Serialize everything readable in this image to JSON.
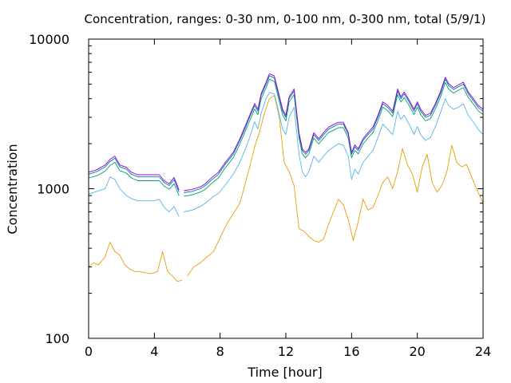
{
  "chart_data": {
    "type": "line",
    "title": "Concentration, ranges: 0-30 nm, 0-100 nm, 0-300 nm, total (5/9/1)",
    "xlabel": "Time [hour]",
    "ylabel": "Concentration",
    "xlim": [
      0,
      24
    ],
    "ylim": [
      100,
      10000
    ],
    "yscale": "log",
    "grid": false,
    "legend": "none",
    "x_ticks": [
      "0",
      "4",
      "8",
      "12",
      "16",
      "20",
      "24"
    ],
    "y_ticks": [
      "100",
      "1000",
      "10000"
    ],
    "series": [
      {
        "color": "#0072b2",
        "stroke_width": 0.9,
        "x": [
          0,
          0.5,
          1,
          1.3,
          1.6,
          1.9,
          2.3,
          2.6,
          3,
          3.5,
          4,
          4.3,
          4.6,
          4.9,
          5.2,
          5.5,
          null,
          5.8,
          6.3,
          6.8,
          7.1,
          7.5,
          7.9,
          8.3,
          8.8,
          9.2,
          9.5,
          9.8,
          10.1,
          10.3,
          10.5,
          10.8,
          11,
          11.3,
          11.5,
          11.8,
          12,
          12.2,
          12.5,
          12.8,
          13,
          13.2,
          13.4,
          13.7,
          14,
          14.3,
          14.6,
          14.9,
          15.2,
          15.5,
          15.8,
          16,
          16.2,
          16.4,
          16.7,
          17,
          17.3,
          17.6,
          17.9,
          18.2,
          18.5,
          18.8,
          19,
          19.2,
          19.5,
          19.8,
          20,
          20.2,
          20.5,
          20.8,
          21.1,
          21.4,
          21.7,
          21.9,
          22.2,
          22.5,
          22.8,
          23.1,
          23.4,
          23.7,
          24
        ],
        "y": [
          1250,
          1300,
          1400,
          1520,
          1600,
          1400,
          1350,
          1250,
          1200,
          1200,
          1200,
          1200,
          1100,
          1050,
          1150,
          950,
          null,
          940,
          960,
          1000,
          1050,
          1150,
          1250,
          1450,
          1700,
          2100,
          2500,
          3000,
          3600,
          3300,
          4200,
          5000,
          5700,
          5500,
          4500,
          3300,
          3000,
          4000,
          4500,
          2300,
          1800,
          1700,
          1800,
          2300,
          2100,
          2300,
          2500,
          2600,
          2700,
          2700,
          2300,
          1700,
          1900,
          1800,
          2100,
          2300,
          2500,
          3000,
          3700,
          3500,
          3200,
          4500,
          4000,
          4300,
          3800,
          3300,
          3700,
          3300,
          3000,
          3100,
          3600,
          4300,
          5400,
          4900,
          4600,
          4800,
          5000,
          4300,
          3900,
          3500,
          3300
        ]
      },
      {
        "color": "#e69f00",
        "stroke_width": 0.9,
        "x": [
          0,
          0.3,
          0.6,
          1,
          1.3,
          1.6,
          1.9,
          2.2,
          2.5,
          2.8,
          3.1,
          3.4,
          3.8,
          4.2,
          4.5,
          4.8,
          5.1,
          5.4,
          5.7,
          null,
          6,
          6.4,
          6.8,
          7.2,
          7.6,
          8,
          8.4,
          8.8,
          9.2,
          9.5,
          9.8,
          10.1,
          10.4,
          10.7,
          11,
          11.3,
          11.6,
          11.9,
          12.2,
          12.5,
          12.8,
          13.1,
          13.4,
          13.7,
          14,
          14.3,
          14.6,
          14.9,
          15.2,
          15.5,
          15.8,
          16.1,
          16.4,
          16.7,
          17,
          17.3,
          17.6,
          17.9,
          18.2,
          18.5,
          18.8,
          19.1,
          19.4,
          19.7,
          20,
          20.3,
          20.6,
          20.9,
          21.2,
          21.5,
          21.8,
          22.1,
          22.4,
          22.7,
          23,
          23.3,
          23.6,
          24
        ],
        "y": [
          300,
          320,
          310,
          350,
          440,
          380,
          360,
          310,
          290,
          280,
          280,
          275,
          270,
          280,
          380,
          280,
          260,
          240,
          245,
          null,
          260,
          300,
          320,
          350,
          380,
          470,
          580,
          680,
          800,
          1050,
          1400,
          1900,
          2400,
          3200,
          4000,
          4200,
          3000,
          1500,
          1300,
          1050,
          540,
          520,
          480,
          450,
          440,
          460,
          580,
          700,
          850,
          780,
          620,
          450,
          600,
          850,
          720,
          750,
          900,
          1100,
          1200,
          1000,
          1300,
          1850,
          1450,
          1250,
          950,
          1400,
          1700,
          1100,
          950,
          1050,
          1300,
          1950,
          1500,
          1400,
          1450,
          1200,
          1000,
          800
        ]
      },
      {
        "color": "#56b4e9",
        "stroke_width": 0.9,
        "x": [
          0,
          0.5,
          1,
          1.3,
          1.6,
          1.9,
          2.3,
          2.6,
          3,
          3.5,
          4,
          4.3,
          4.6,
          4.9,
          5.2,
          5.5,
          null,
          5.8,
          6.3,
          6.8,
          7.1,
          7.5,
          7.9,
          8.3,
          8.8,
          9.2,
          9.5,
          9.8,
          10.1,
          10.3,
          10.5,
          10.8,
          11,
          11.3,
          11.5,
          11.8,
          12,
          12.2,
          12.5,
          12.8,
          13,
          13.2,
          13.4,
          13.7,
          14,
          14.3,
          14.6,
          14.9,
          15.2,
          15.5,
          15.8,
          16,
          16.2,
          16.4,
          16.7,
          17,
          17.3,
          17.6,
          17.9,
          18.2,
          18.5,
          18.8,
          19,
          19.2,
          19.5,
          19.8,
          20,
          20.2,
          20.5,
          20.8,
          21.1,
          21.4,
          21.7,
          21.9,
          22.2,
          22.5,
          22.8,
          23.1,
          23.4,
          23.7,
          24
        ],
        "y": [
          920,
          960,
          1000,
          1200,
          1150,
          1000,
          900,
          860,
          830,
          830,
          830,
          850,
          750,
          700,
          760,
          650,
          null,
          700,
          720,
          760,
          800,
          870,
          930,
          1050,
          1250,
          1500,
          1800,
          2200,
          2800,
          2500,
          3200,
          4000,
          4400,
          4300,
          3500,
          2500,
          2300,
          3000,
          3500,
          1700,
          1300,
          1200,
          1300,
          1650,
          1500,
          1650,
          1800,
          1900,
          2000,
          1950,
          1650,
          1150,
          1350,
          1250,
          1500,
          1650,
          1800,
          2200,
          2700,
          2500,
          2300,
          3300,
          2900,
          3100,
          2700,
          2300,
          2600,
          2300,
          2100,
          2200,
          2600,
          3200,
          4000,
          3600,
          3400,
          3500,
          3700,
          3100,
          2800,
          2500,
          2300
        ]
      },
      {
        "color": "#009e73",
        "stroke_width": 0.9,
        "x": [
          0,
          0.5,
          1,
          1.3,
          1.6,
          1.9,
          2.3,
          2.6,
          3,
          3.5,
          4,
          4.3,
          4.6,
          4.9,
          5.2,
          5.5,
          null,
          5.8,
          6.3,
          6.8,
          7.1,
          7.5,
          7.9,
          8.3,
          8.8,
          9.2,
          9.5,
          9.8,
          10.1,
          10.3,
          10.5,
          10.8,
          11,
          11.3,
          11.5,
          11.8,
          12,
          12.2,
          12.5,
          12.8,
          13,
          13.2,
          13.4,
          13.7,
          14,
          14.3,
          14.6,
          14.9,
          15.2,
          15.5,
          15.8,
          16,
          16.2,
          16.4,
          16.7,
          17,
          17.3,
          17.6,
          17.9,
          18.2,
          18.5,
          18.8,
          19,
          19.2,
          19.5,
          19.8,
          20,
          20.2,
          20.5,
          20.8,
          21.1,
          21.4,
          21.7,
          21.9,
          22.2,
          22.5,
          22.8,
          23.1,
          23.4,
          23.7,
          24
        ],
        "y": [
          1180,
          1220,
          1310,
          1430,
          1500,
          1320,
          1270,
          1180,
          1130,
          1130,
          1130,
          1130,
          1040,
          990,
          1080,
          900,
          null,
          890,
          910,
          950,
          990,
          1090,
          1180,
          1370,
          1610,
          1990,
          2370,
          2840,
          3410,
          3130,
          3980,
          4740,
          5400,
          5210,
          4260,
          3130,
          2840,
          3790,
          4260,
          2180,
          1710,
          1610,
          1710,
          2180,
          1990,
          2180,
          2370,
          2460,
          2560,
          2560,
          2180,
          1610,
          1800,
          1710,
          1990,
          2180,
          2370,
          2840,
          3510,
          3320,
          3030,
          4260,
          3790,
          4070,
          3600,
          3130,
          3510,
          3130,
          2840,
          2940,
          3410,
          4070,
          5120,
          4640,
          4360,
          4550,
          4740,
          4070,
          3700,
          3320,
          3130
        ]
      },
      {
        "color": "#9400d3",
        "stroke_width": 0.9,
        "x": [
          0,
          0.5,
          1,
          1.3,
          1.6,
          1.9,
          2.3,
          2.6,
          3,
          3.5,
          4,
          4.3,
          4.6,
          4.9,
          5.2,
          5.5,
          null,
          5.8,
          6.3,
          6.8,
          7.1,
          7.5,
          7.9,
          8.3,
          8.8,
          9.2,
          9.5,
          9.8,
          10.1,
          10.3,
          10.5,
          10.8,
          11,
          11.3,
          11.5,
          11.8,
          12,
          12.2,
          12.5,
          12.8,
          13,
          13.2,
          13.4,
          13.7,
          14,
          14.3,
          14.6,
          14.9,
          15.2,
          15.5,
          15.8,
          16,
          16.2,
          16.4,
          16.7,
          17,
          17.3,
          17.6,
          17.9,
          18.2,
          18.5,
          18.8,
          19,
          19.2,
          19.5,
          19.8,
          20,
          20.2,
          20.5,
          20.8,
          21.1,
          21.4,
          21.7,
          21.9,
          22.2,
          22.5,
          22.8,
          23.1,
          23.4,
          23.7,
          24
        ],
        "y": [
          1290,
          1340,
          1440,
          1570,
          1650,
          1440,
          1390,
          1290,
          1240,
          1240,
          1240,
          1240,
          1130,
          1080,
          1190,
          980,
          null,
          970,
          990,
          1030,
          1080,
          1190,
          1290,
          1490,
          1750,
          2160,
          2580,
          3090,
          3710,
          3400,
          4330,
          5150,
          5870,
          5670,
          4640,
          3400,
          3090,
          4120,
          4640,
          2370,
          1850,
          1750,
          1850,
          2370,
          2160,
          2370,
          2580,
          2680,
          2780,
          2780,
          2370,
          1750,
          1960,
          1850,
          2160,
          2370,
          2580,
          3090,
          3810,
          3610,
          3300,
          4640,
          4120,
          4430,
          3910,
          3400,
          3810,
          3400,
          3090,
          3190,
          3710,
          4430,
          5560,
          5050,
          4740,
          4940,
          5150,
          4430,
          4020,
          3610,
          3400
        ]
      }
    ]
  }
}
